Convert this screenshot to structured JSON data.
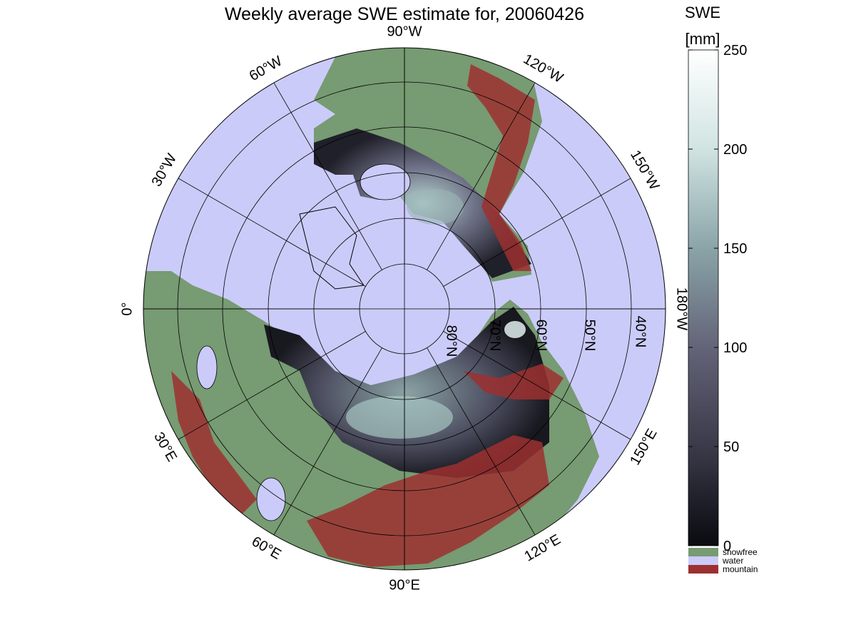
{
  "title": "Weekly average SWE estimate for, 20060426",
  "colorbar": {
    "label_line1": "SWE",
    "label_line2": "[mm]",
    "ticks": [
      "0",
      "50",
      "100",
      "150",
      "200",
      "250"
    ],
    "tick_values": [
      0,
      50,
      100,
      150,
      200,
      250
    ],
    "range": [
      0,
      250
    ],
    "gradient_stops": [
      "#0a0a10",
      "#3a3a4a",
      "#636478",
      "#8aa4a8",
      "#d0e4e2",
      "#ffffff"
    ]
  },
  "legend": [
    {
      "label": "snowfree",
      "color": "#779b72"
    },
    {
      "label": "water",
      "color": "#cbcbfa"
    },
    {
      "label": "mountain",
      "color": "#9c3030"
    }
  ],
  "map": {
    "projection": "north-polar-stereographic",
    "ocean_color": "#cbcbfa",
    "land_color": "#779b72",
    "mountain_color": "#9c3030",
    "lon_labels": [
      {
        "text": "90°W",
        "deg": 90,
        "lat_label": false
      },
      {
        "text": "120°W",
        "deg": 60
      },
      {
        "text": "150°W",
        "deg": 30
      },
      {
        "text": "180°W",
        "deg": 0
      },
      {
        "text": "150°E",
        "deg": -30
      },
      {
        "text": "120°E",
        "deg": -60
      },
      {
        "text": "90°E",
        "deg": -90
      },
      {
        "text": "60°E",
        "deg": -120
      },
      {
        "text": "30°E",
        "deg": -150
      },
      {
        "text": "0°",
        "deg": 180
      },
      {
        "text": "30°W",
        "deg": 150
      },
      {
        "text": "60°W",
        "deg": 120
      }
    ],
    "lat_labels": [
      {
        "text": "80°N",
        "lat": 80
      },
      {
        "text": "70°N",
        "lat": 70
      },
      {
        "text": "60°N",
        "lat": 60
      },
      {
        "text": "50°N",
        "lat": 50
      },
      {
        "text": "40°N",
        "lat": 40
      }
    ],
    "lat_circles": [
      80,
      70,
      60,
      50,
      40
    ]
  }
}
